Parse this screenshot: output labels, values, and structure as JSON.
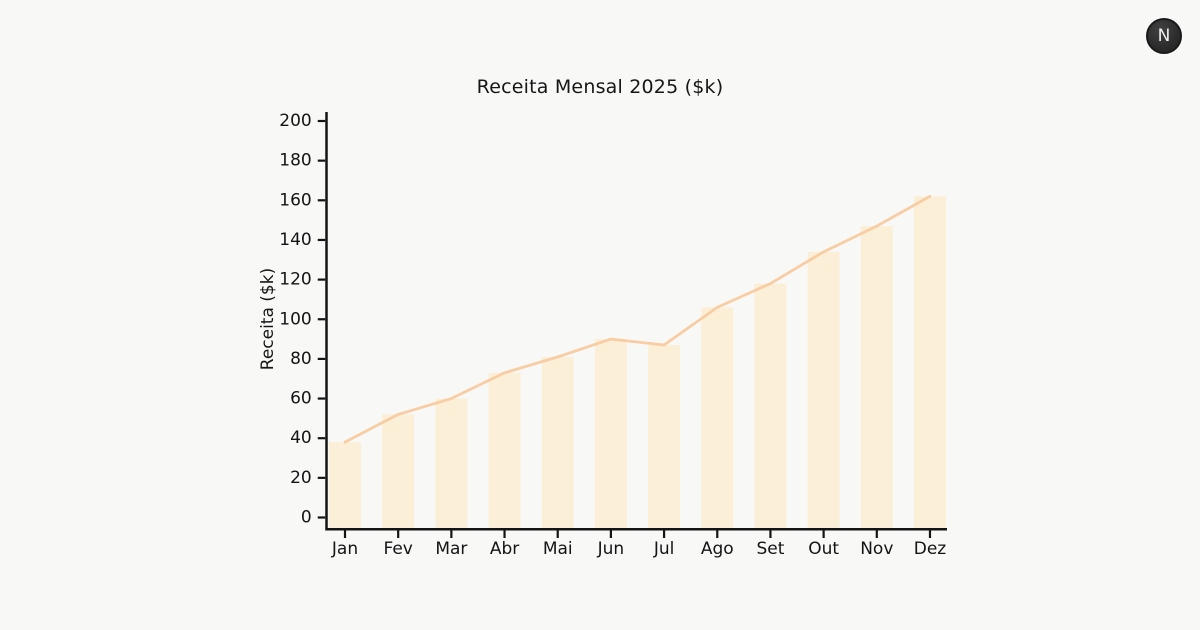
{
  "header": {
    "avatar_letter": "N"
  },
  "chart_data": {
    "type": "bar+line",
    "title": "Receita Mensal 2025 ($k)",
    "xlabel": "",
    "ylabel": "Receita ($k)",
    "categories": [
      "Jan",
      "Fev",
      "Mar",
      "Abr",
      "Mai",
      "Jun",
      "Jul",
      "Ago",
      "Set",
      "Out",
      "Nov",
      "Dez"
    ],
    "values": [
      38,
      52,
      60,
      73,
      81,
      90,
      87,
      106,
      118,
      134,
      147,
      162
    ],
    "yticks": [
      0,
      20,
      40,
      60,
      80,
      100,
      120,
      140,
      160,
      180,
      200
    ],
    "ylim": [
      0,
      200
    ],
    "grid": false,
    "legend": false,
    "colors": {
      "background": "#f8f8f7",
      "bar": "#fcefd7",
      "line": "#f9cda3",
      "axis": "#141414"
    }
  }
}
